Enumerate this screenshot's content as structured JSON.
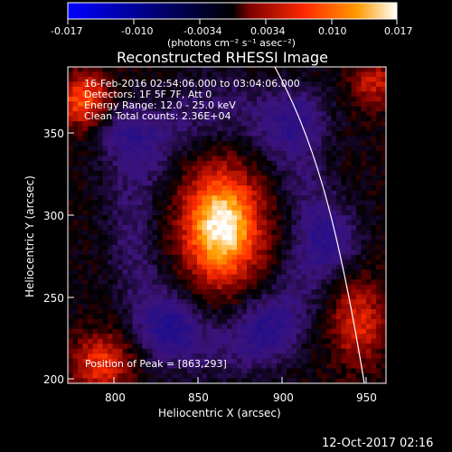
{
  "colorbar": {
    "min_label": "-0.017",
    "tick_labels": [
      "-0.017",
      "-0.010",
      "-0.0034",
      "0.0034",
      "0.010",
      "0.017"
    ],
    "unit": "(photons cm⁻² s⁻¹ asec⁻²)",
    "colors": [
      "#0000ff",
      "#000000",
      "#7a0000",
      "#ff2a00",
      "#ff8a00",
      "#ffffff"
    ]
  },
  "chart": {
    "title": "Reconstructed RHESSI Image",
    "xlabel": "Heliocentric X (arcsec)",
    "ylabel": "Heliocentric Y (arcsec)",
    "x_ticks": [
      "800",
      "850",
      "900",
      "950"
    ],
    "y_ticks": [
      "200",
      "250",
      "300",
      "350"
    ],
    "info_lines": [
      "16-Feb-2016 02:54:06.000 to 03:04:06.000",
      "Detectors: 1F 5F 7F, Att 0",
      "Energy Range: 12.0 - 25.0 keV",
      "Clean     Total counts: 2.36E+04"
    ],
    "peak_label": "Position of Peak = [863,293]",
    "footer": "12-Oct-2017 02:16"
  },
  "chart_data": {
    "type": "heatmap",
    "title": "Reconstructed RHESSI Image",
    "xlabel": "Heliocentric X (arcsec)",
    "ylabel": "Heliocentric Y (arcsec)",
    "xlim": [
      770,
      962
    ],
    "ylim": [
      198,
      390
    ],
    "x_ticks": [
      800,
      850,
      900,
      950
    ],
    "y_ticks": [
      200,
      250,
      300,
      350
    ],
    "colorbar": {
      "range": [
        -0.017,
        0.017
      ],
      "ticks": [
        -0.017,
        -0.01,
        -0.0034,
        0.0034,
        0.01,
        0.017
      ],
      "unit": "photons cm^-2 s^-1 asec^-2"
    },
    "source_peak": {
      "x": 863,
      "y": 293,
      "estimated_max": 0.017
    },
    "limb_curve": [
      {
        "x": 890,
        "y": 390
      },
      {
        "x": 905,
        "y": 350
      },
      {
        "x": 920,
        "y": 300
      },
      {
        "x": 935,
        "y": 250
      },
      {
        "x": 950,
        "y": 210
      },
      {
        "x": 956,
        "y": 198
      }
    ],
    "grid": false,
    "legend": "none"
  }
}
